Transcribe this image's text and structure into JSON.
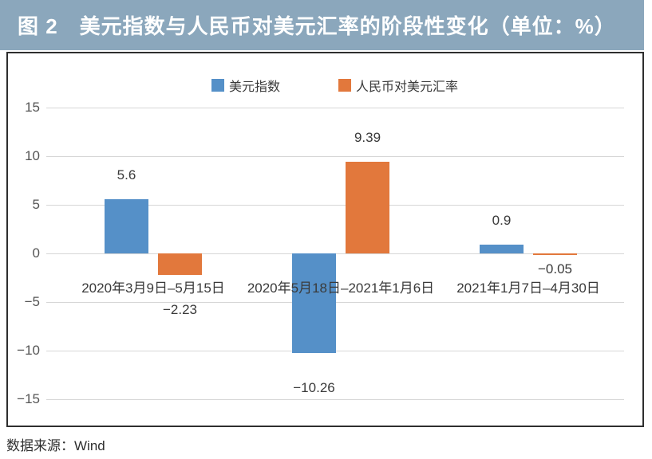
{
  "figure": {
    "title": "图 2　美元指数与人民币对美元汇率的阶段性变化（单位：%）",
    "source": "数据来源：Wind"
  },
  "colors": {
    "header_bg": "#8BA7BC",
    "series_blue": "#5590C8",
    "series_orange": "#E2783C",
    "gridline": "#D6D6D6",
    "box_border": "#2E2E2E",
    "text": "#3A3A3A"
  },
  "chart_data": {
    "type": "bar",
    "categories": [
      "2020年3月9日–5月15日",
      "2020年5月18日–2021年1月6日",
      "2021年1月7日–4月30日"
    ],
    "series": [
      {
        "name": "美元指数",
        "color": "#5590C8",
        "values": [
          5.6,
          -10.26,
          0.9
        ]
      },
      {
        "name": "人民币对美元汇率",
        "color": "#E2783C",
        "values": [
          -2.23,
          9.39,
          -0.05
        ]
      }
    ],
    "yticks": [
      15,
      10,
      5,
      0,
      -5,
      -10,
      -15
    ],
    "ylim": [
      -15,
      15
    ],
    "grid": true,
    "legend_position": "top",
    "value_labels_shown": true
  }
}
